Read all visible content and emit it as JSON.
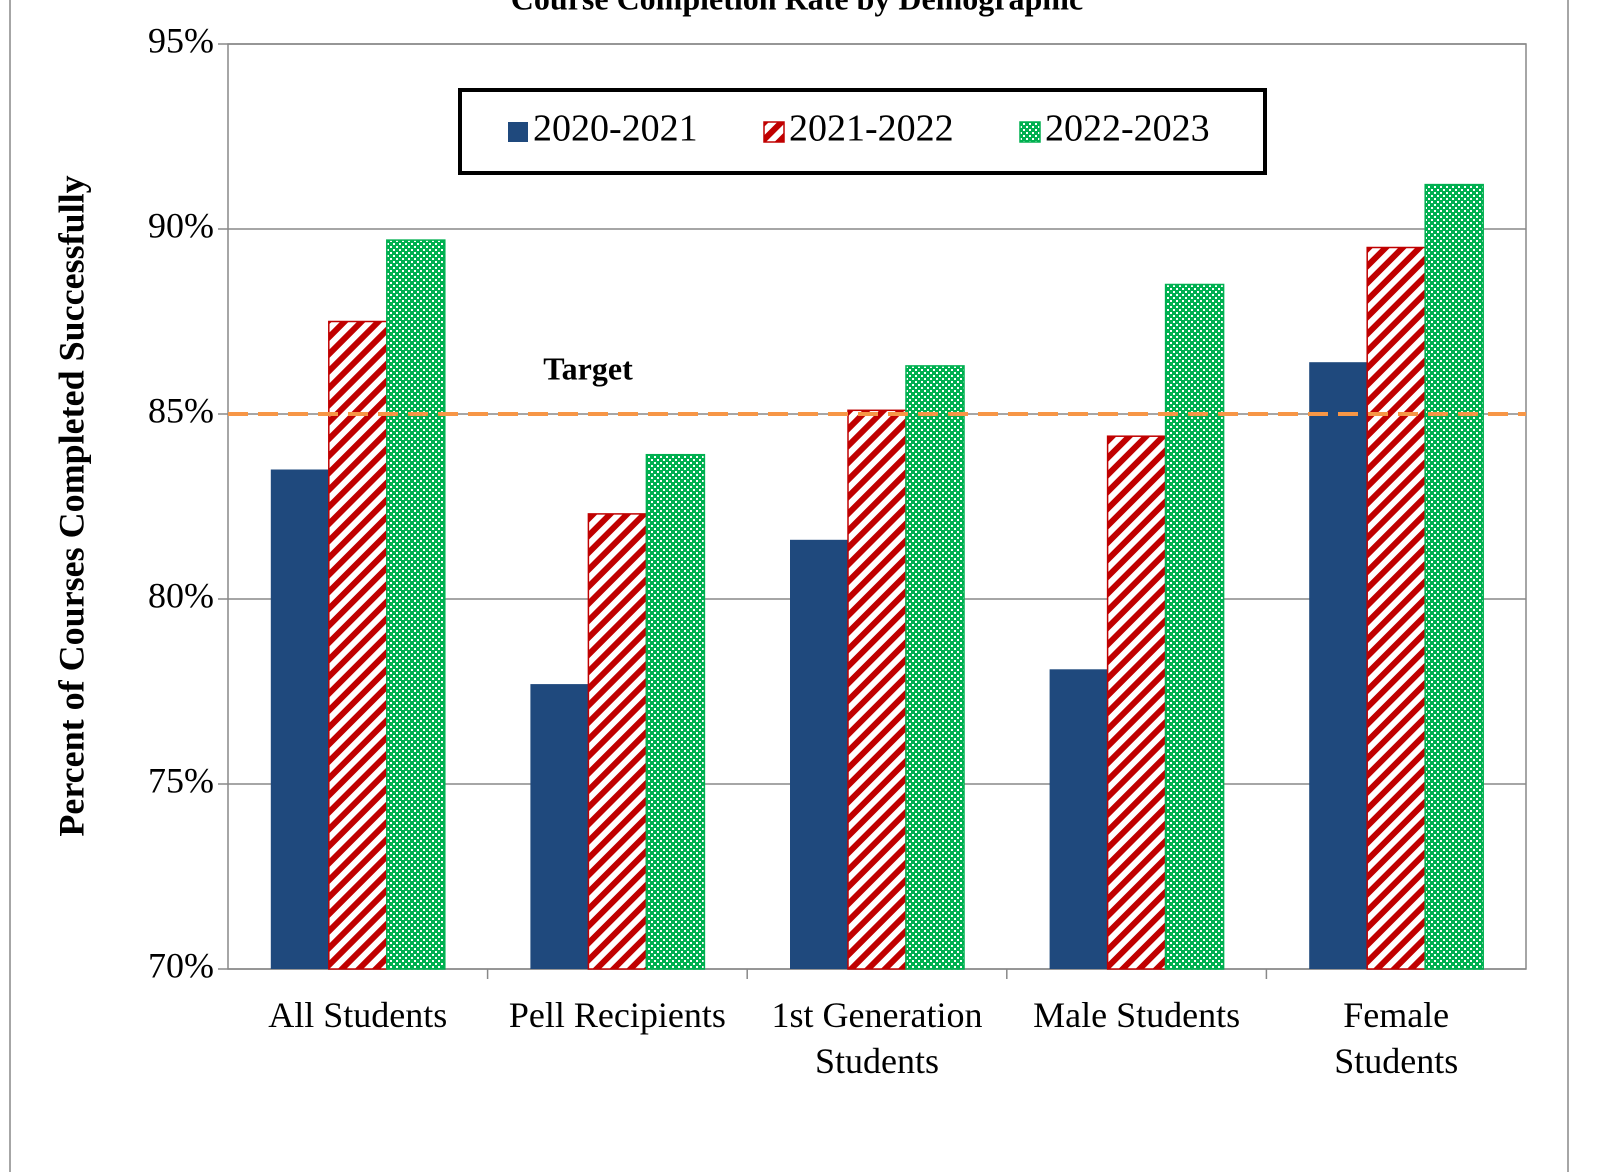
{
  "chart_data": {
    "type": "bar",
    "title": "Course Completion Rate by Demographic",
    "y_label": "Percent of Courses Completed Successfully",
    "categories": [
      "All Students",
      "Pell Recipients",
      "1st Generation\nStudents",
      "Male Students",
      "Female\nStudents"
    ],
    "series": [
      {
        "name": "2020-2021",
        "color": "#1f497d",
        "pattern": "solid",
        "values": [
          83.5,
          77.7,
          81.6,
          78.1,
          86.4
        ]
      },
      {
        "name": "2021-2022",
        "color": "#c00000",
        "pattern": "diagonal",
        "values": [
          87.5,
          82.3,
          85.1,
          84.4,
          89.5
        ]
      },
      {
        "name": "2022-2023",
        "color": "#00b050",
        "pattern": "dots",
        "values": [
          89.7,
          83.9,
          86.3,
          88.5,
          91.2
        ]
      }
    ],
    "ylim": [
      70,
      95
    ],
    "yticks": [
      {
        "value": 70,
        "label": "70%"
      },
      {
        "value": 75,
        "label": "75%"
      },
      {
        "value": 80,
        "label": "80%"
      },
      {
        "value": 85,
        "label": "85%"
      },
      {
        "value": 90,
        "label": "90%"
      },
      {
        "value": 95,
        "label": "95%"
      }
    ],
    "grid": true,
    "legend": "top",
    "target": {
      "label": "Target",
      "value": 85,
      "color": "#f79646"
    }
  }
}
